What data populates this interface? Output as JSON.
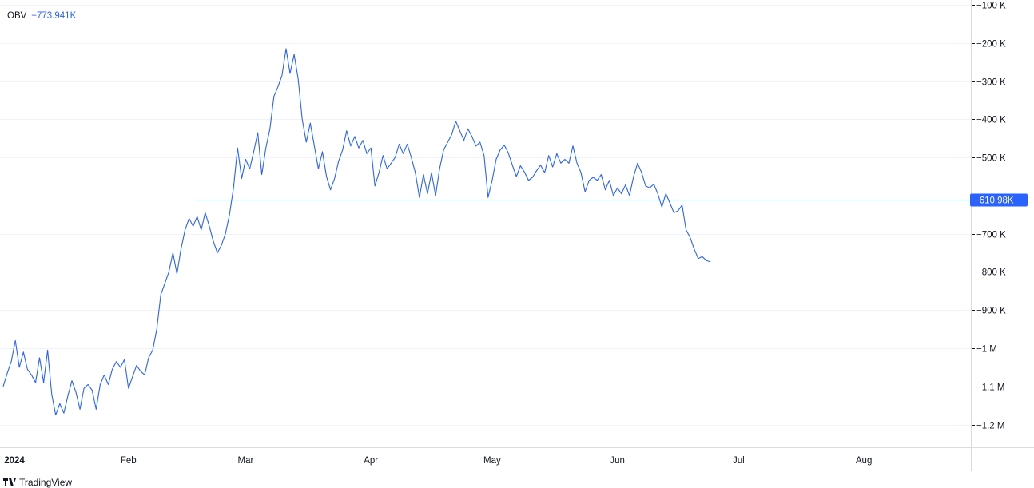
{
  "indicator": {
    "name": "OBV",
    "current_value": "−773.941K"
  },
  "reference_line": {
    "value": -610980,
    "label": "−610.98K"
  },
  "branding": {
    "name": "TradingView"
  },
  "colors": {
    "series": "#2962ff",
    "badge": "#2962ff",
    "grid": "#f0f3fa"
  },
  "chart_data": {
    "type": "line",
    "title": "",
    "xlabel": "",
    "ylabel": "",
    "ylim": [
      -1270000,
      -100000
    ],
    "xlim": [
      "2024-01-01",
      "2024-09-03"
    ],
    "grid": true,
    "y_ticks": [
      {
        "value": -100000,
        "label": "−100 K"
      },
      {
        "value": -200000,
        "label": "−200 K"
      },
      {
        "value": -300000,
        "label": "−300 K"
      },
      {
        "value": -400000,
        "label": "−400 K"
      },
      {
        "value": -500000,
        "label": "−500 K"
      },
      {
        "value": -700000,
        "label": "−700 K"
      },
      {
        "value": -800000,
        "label": "−800 K"
      },
      {
        "value": -900000,
        "label": "−900 K"
      },
      {
        "value": -1000000,
        "label": "−1 M"
      },
      {
        "value": -1100000,
        "label": "−1.1 M"
      },
      {
        "value": -1200000,
        "label": "−1.2 M"
      }
    ],
    "x_ticks": [
      {
        "date": "2024-01-01",
        "label": "2024",
        "bold": true
      },
      {
        "date": "2024-02-01",
        "label": "Feb"
      },
      {
        "date": "2024-03-01",
        "label": "Mar"
      },
      {
        "date": "2024-04-01",
        "label": "Apr"
      },
      {
        "date": "2024-05-01",
        "label": "May"
      },
      {
        "date": "2024-06-01",
        "label": "Jun"
      },
      {
        "date": "2024-07-01",
        "label": "Jul"
      },
      {
        "date": "2024-08-01",
        "label": "Aug"
      }
    ],
    "series": [
      {
        "x": [
          "2024-01-01",
          "2024-01-02",
          "2024-01-03",
          "2024-01-04",
          "2024-01-05",
          "2024-01-06",
          "2024-01-07",
          "2024-01-08",
          "2024-01-09",
          "2024-01-10",
          "2024-01-11",
          "2024-01-12",
          "2024-01-13",
          "2024-01-14",
          "2024-01-15",
          "2024-01-16",
          "2024-01-17",
          "2024-01-18",
          "2024-01-19",
          "2024-01-20",
          "2024-01-21",
          "2024-01-22",
          "2024-01-23",
          "2024-01-24",
          "2024-01-25",
          "2024-01-26",
          "2024-01-27",
          "2024-01-28",
          "2024-01-29",
          "2024-01-30",
          "2024-01-31",
          "2024-02-01",
          "2024-02-02",
          "2024-02-03",
          "2024-02-04",
          "2024-02-05",
          "2024-02-06",
          "2024-02-07",
          "2024-02-08",
          "2024-02-09",
          "2024-02-10",
          "2024-02-11",
          "2024-02-12",
          "2024-02-13",
          "2024-02-14",
          "2024-02-15",
          "2024-02-16",
          "2024-02-17",
          "2024-02-18",
          "2024-02-19",
          "2024-02-20",
          "2024-02-21",
          "2024-02-22",
          "2024-02-23",
          "2024-02-24",
          "2024-02-25",
          "2024-02-26",
          "2024-02-27",
          "2024-02-28",
          "2024-02-29",
          "2024-03-01",
          "2024-03-02",
          "2024-03-03",
          "2024-03-04",
          "2024-03-05",
          "2024-03-06",
          "2024-03-07",
          "2024-03-08",
          "2024-03-09",
          "2024-03-10",
          "2024-03-11",
          "2024-03-12",
          "2024-03-13",
          "2024-03-14",
          "2024-03-15",
          "2024-03-16",
          "2024-03-17",
          "2024-03-18",
          "2024-03-19",
          "2024-03-20",
          "2024-03-21",
          "2024-03-22",
          "2024-03-23",
          "2024-03-24",
          "2024-03-25",
          "2024-03-26",
          "2024-03-27",
          "2024-03-28",
          "2024-03-29",
          "2024-03-30",
          "2024-03-31",
          "2024-04-01",
          "2024-04-02",
          "2024-04-03",
          "2024-04-04",
          "2024-04-05",
          "2024-04-06",
          "2024-04-07",
          "2024-04-08",
          "2024-04-09",
          "2024-04-10",
          "2024-04-11",
          "2024-04-12",
          "2024-04-13",
          "2024-04-14",
          "2024-04-15",
          "2024-04-16",
          "2024-04-17",
          "2024-04-18",
          "2024-04-19",
          "2024-04-20",
          "2024-04-21",
          "2024-04-22",
          "2024-04-23",
          "2024-04-24",
          "2024-04-25",
          "2024-04-26",
          "2024-04-27",
          "2024-04-28",
          "2024-04-29",
          "2024-04-30",
          "2024-05-01",
          "2024-05-02",
          "2024-05-03",
          "2024-05-04",
          "2024-05-05",
          "2024-05-06",
          "2024-05-07",
          "2024-05-08",
          "2024-05-09",
          "2024-05-10",
          "2024-05-11",
          "2024-05-12",
          "2024-05-13",
          "2024-05-14",
          "2024-05-15",
          "2024-05-16",
          "2024-05-17",
          "2024-05-18",
          "2024-05-19",
          "2024-05-20",
          "2024-05-21",
          "2024-05-22",
          "2024-05-23",
          "2024-05-24",
          "2024-05-25",
          "2024-05-26",
          "2024-05-27",
          "2024-05-28",
          "2024-05-29",
          "2024-05-30",
          "2024-05-31",
          "2024-06-01",
          "2024-06-02",
          "2024-06-03",
          "2024-06-04",
          "2024-06-05",
          "2024-06-06",
          "2024-06-07",
          "2024-06-08",
          "2024-06-09",
          "2024-06-10",
          "2024-06-11",
          "2024-06-12",
          "2024-06-13",
          "2024-06-14",
          "2024-06-15",
          "2024-06-16",
          "2024-06-17",
          "2024-06-18",
          "2024-06-19",
          "2024-06-20",
          "2024-06-21",
          "2024-06-22",
          "2024-06-23",
          "2024-06-24"
        ],
        "values": [
          -1100000,
          -1065000,
          -1035000,
          -980000,
          -1050000,
          -1010000,
          -1055000,
          -1070000,
          -1090000,
          -1025000,
          -1090000,
          -1005000,
          -1120000,
          -1175000,
          -1145000,
          -1170000,
          -1125000,
          -1085000,
          -1115000,
          -1160000,
          -1105000,
          -1095000,
          -1110000,
          -1160000,
          -1095000,
          -1070000,
          -1095000,
          -1055000,
          -1035000,
          -1050000,
          -1030000,
          -1105000,
          -1075000,
          -1045000,
          -1060000,
          -1070000,
          -1025000,
          -1005000,
          -950000,
          -860000,
          -830000,
          -800000,
          -750000,
          -805000,
          -740000,
          -690000,
          -660000,
          -680000,
          -655000,
          -690000,
          -645000,
          -680000,
          -720000,
          -750000,
          -730000,
          -700000,
          -650000,
          -580000,
          -475000,
          -555000,
          -505000,
          -530000,
          -485000,
          -435000,
          -545000,
          -475000,
          -425000,
          -340000,
          -315000,
          -285000,
          -215000,
          -280000,
          -230000,
          -295000,
          -400000,
          -460000,
          -410000,
          -470000,
          -530000,
          -485000,
          -550000,
          -585000,
          -555000,
          -510000,
          -480000,
          -430000,
          -470000,
          -445000,
          -475000,
          -455000,
          -490000,
          -475000,
          -575000,
          -540000,
          -495000,
          -530000,
          -515000,
          -500000,
          -465000,
          -490000,
          -465000,
          -500000,
          -540000,
          -605000,
          -545000,
          -595000,
          -540000,
          -600000,
          -530000,
          -480000,
          -460000,
          -440000,
          -405000,
          -430000,
          -455000,
          -425000,
          -445000,
          -470000,
          -460000,
          -495000,
          -605000,
          -560000,
          -505000,
          -480000,
          -468000,
          -488000,
          -520000,
          -550000,
          -522000,
          -538000,
          -560000,
          -552000,
          -535000,
          -520000,
          -540000,
          -495000,
          -525000,
          -490000,
          -515000,
          -505000,
          -515000,
          -470000,
          -515000,
          -540000,
          -590000,
          -560000,
          -552000,
          -560000,
          -545000,
          -585000,
          -560000,
          -600000,
          -580000,
          -595000,
          -572000,
          -600000,
          -550000,
          -515000,
          -540000,
          -575000,
          -580000,
          -570000,
          -595000,
          -630000,
          -595000,
          -620000,
          -645000,
          -640000,
          -625000,
          -690000,
          -710000,
          -740000,
          -765000,
          -760000,
          -770000,
          -773941
        ]
      }
    ]
  }
}
